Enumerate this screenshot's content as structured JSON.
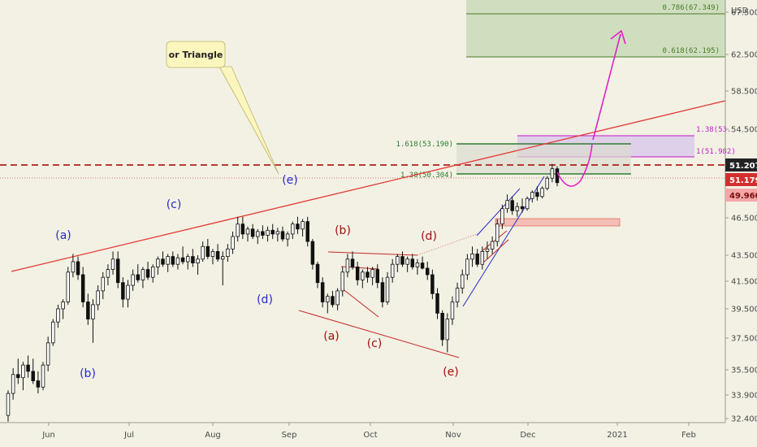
{
  "chart_data": {
    "type": "candlestick",
    "currency_label": "USD",
    "x_ticks": [
      "Jun",
      "Jul",
      "Aug",
      "Sep",
      "Oct",
      "Nov",
      "Dec",
      "2021",
      "Feb"
    ],
    "y_ticks": [
      32.4,
      33.9,
      35.5,
      37.5,
      39.5,
      41.5,
      43.5,
      46.5,
      50.5,
      54.5,
      58.5,
      62.5,
      67.5
    ],
    "price_badges": [
      {
        "value": "51.207",
        "color": "#222222"
      },
      {
        "value": "51.179",
        "color": "#d32f2f"
      },
      {
        "value": "49.960",
        "color": "#f4a6a6"
      }
    ],
    "fib_levels": [
      {
        "label": "0.786(67.349)",
        "price": 67.349,
        "color": "#4a7a2a"
      },
      {
        "label": "0.618(62.195)",
        "price": 62.195,
        "color": "#4a7a2a"
      },
      {
        "label": "1.618(53.190)",
        "price": 53.19,
        "color": "#2e7d32"
      },
      {
        "label": "1.38(50.304)",
        "price": 50.304,
        "color": "#2e7d32"
      },
      {
        "label": "1.38(53.",
        "price": 53.9,
        "color": "#c218c9"
      },
      {
        "label": "1(51.982)",
        "price": 51.982,
        "color": "#c218c9"
      }
    ],
    "callout": "or Triangle",
    "wave_labels": [
      {
        "text": "(a)",
        "color": "#2a2ac8"
      },
      {
        "text": "(b)",
        "color": "#2a2ac8"
      },
      {
        "text": "(c)",
        "color": "#2a2ac8"
      },
      {
        "text": "(d)",
        "color": "#2a2ac8"
      },
      {
        "text": "(e)",
        "color": "#2a2ac8"
      },
      {
        "text": "(b)",
        "color": "#a01010"
      },
      {
        "text": "(d)",
        "color": "#a01010"
      },
      {
        "text": "(a)",
        "color": "#a01010"
      },
      {
        "text": "(c)",
        "color": "#a01010"
      },
      {
        "text": "(e)",
        "color": "#a01010"
      }
    ],
    "candles": [
      {
        "o": 32.6,
        "h": 34.2,
        "l": 32.2,
        "c": 34.0
      },
      {
        "o": 34.0,
        "h": 35.6,
        "l": 33.6,
        "c": 35.2
      },
      {
        "o": 35.2,
        "h": 36.2,
        "l": 34.6,
        "c": 35.0
      },
      {
        "o": 35.0,
        "h": 36.0,
        "l": 34.2,
        "c": 35.8
      },
      {
        "o": 35.8,
        "h": 36.4,
        "l": 35.0,
        "c": 35.4
      },
      {
        "o": 35.4,
        "h": 36.2,
        "l": 34.6,
        "c": 34.8
      },
      {
        "o": 34.8,
        "h": 35.4,
        "l": 34.0,
        "c": 34.4
      },
      {
        "o": 34.4,
        "h": 36.0,
        "l": 34.2,
        "c": 35.8
      },
      {
        "o": 35.8,
        "h": 37.6,
        "l": 35.4,
        "c": 37.2
      },
      {
        "o": 37.2,
        "h": 38.8,
        "l": 37.0,
        "c": 38.6
      },
      {
        "o": 38.6,
        "h": 39.8,
        "l": 38.2,
        "c": 39.5
      },
      {
        "o": 39.5,
        "h": 40.2,
        "l": 38.8,
        "c": 40.0
      },
      {
        "o": 40.0,
        "h": 42.6,
        "l": 39.8,
        "c": 42.2
      },
      {
        "o": 42.2,
        "h": 43.6,
        "l": 41.8,
        "c": 43.0
      },
      {
        "o": 43.0,
        "h": 43.4,
        "l": 41.6,
        "c": 42.0
      },
      {
        "o": 42.0,
        "h": 42.6,
        "l": 39.6,
        "c": 40.0
      },
      {
        "o": 40.0,
        "h": 40.6,
        "l": 38.4,
        "c": 38.8
      },
      {
        "o": 38.8,
        "h": 40.2,
        "l": 37.2,
        "c": 39.8
      },
      {
        "o": 39.8,
        "h": 41.2,
        "l": 39.4,
        "c": 40.8
      },
      {
        "o": 40.8,
        "h": 42.2,
        "l": 40.2,
        "c": 41.8
      },
      {
        "o": 41.8,
        "h": 42.8,
        "l": 41.2,
        "c": 42.4
      },
      {
        "o": 42.4,
        "h": 43.8,
        "l": 42.0,
        "c": 43.2
      },
      {
        "o": 43.2,
        "h": 43.8,
        "l": 41.0,
        "c": 41.4
      },
      {
        "o": 41.4,
        "h": 41.8,
        "l": 39.6,
        "c": 40.2
      },
      {
        "o": 40.2,
        "h": 41.6,
        "l": 39.6,
        "c": 41.2
      },
      {
        "o": 41.2,
        "h": 42.4,
        "l": 40.8,
        "c": 42.0
      },
      {
        "o": 42.0,
        "h": 42.8,
        "l": 41.4,
        "c": 41.6
      },
      {
        "o": 41.6,
        "h": 42.6,
        "l": 41.0,
        "c": 42.4
      },
      {
        "o": 42.4,
        "h": 43.0,
        "l": 41.6,
        "c": 41.8
      },
      {
        "o": 41.8,
        "h": 42.8,
        "l": 41.4,
        "c": 42.6
      },
      {
        "o": 42.6,
        "h": 43.4,
        "l": 42.0,
        "c": 43.2
      },
      {
        "o": 43.2,
        "h": 43.8,
        "l": 42.6,
        "c": 42.8
      },
      {
        "o": 42.8,
        "h": 43.6,
        "l": 42.2,
        "c": 43.4
      },
      {
        "o": 43.4,
        "h": 43.8,
        "l": 42.6,
        "c": 42.8
      },
      {
        "o": 42.8,
        "h": 43.6,
        "l": 42.4,
        "c": 43.3
      },
      {
        "o": 43.3,
        "h": 44.2,
        "l": 42.8,
        "c": 43.0
      },
      {
        "o": 43.0,
        "h": 43.6,
        "l": 42.4,
        "c": 43.4
      },
      {
        "o": 43.4,
        "h": 44.0,
        "l": 42.6,
        "c": 42.9
      },
      {
        "o": 42.9,
        "h": 43.5,
        "l": 42.0,
        "c": 43.2
      },
      {
        "o": 43.2,
        "h": 44.6,
        "l": 43.0,
        "c": 44.2
      },
      {
        "o": 44.2,
        "h": 44.8,
        "l": 43.2,
        "c": 43.4
      },
      {
        "o": 43.4,
        "h": 44.0,
        "l": 42.8,
        "c": 43.8
      },
      {
        "o": 43.8,
        "h": 44.4,
        "l": 43.0,
        "c": 43.2
      },
      {
        "o": 43.2,
        "h": 43.8,
        "l": 41.2,
        "c": 43.4
      },
      {
        "o": 43.4,
        "h": 44.4,
        "l": 43.0,
        "c": 44.0
      },
      {
        "o": 44.0,
        "h": 45.4,
        "l": 43.6,
        "c": 45.0
      },
      {
        "o": 45.0,
        "h": 46.6,
        "l": 44.6,
        "c": 46.0
      },
      {
        "o": 46.0,
        "h": 46.6,
        "l": 44.8,
        "c": 45.2
      },
      {
        "o": 45.2,
        "h": 45.8,
        "l": 44.6,
        "c": 45.6
      },
      {
        "o": 45.6,
        "h": 46.0,
        "l": 44.8,
        "c": 45.0
      },
      {
        "o": 45.0,
        "h": 45.6,
        "l": 44.4,
        "c": 45.4
      },
      {
        "o": 45.4,
        "h": 45.9,
        "l": 44.8,
        "c": 45.1
      },
      {
        "o": 45.1,
        "h": 45.8,
        "l": 44.6,
        "c": 45.5
      },
      {
        "o": 45.5,
        "h": 46.0,
        "l": 44.8,
        "c": 45.2
      },
      {
        "o": 45.2,
        "h": 45.7,
        "l": 44.6,
        "c": 45.4
      },
      {
        "o": 45.4,
        "h": 45.8,
        "l": 44.6,
        "c": 44.8
      },
      {
        "o": 44.8,
        "h": 45.4,
        "l": 44.2,
        "c": 45.2
      },
      {
        "o": 45.2,
        "h": 46.2,
        "l": 44.8,
        "c": 46.0
      },
      {
        "o": 46.0,
        "h": 46.6,
        "l": 45.2,
        "c": 45.6
      },
      {
        "o": 45.6,
        "h": 46.4,
        "l": 45.0,
        "c": 46.2
      },
      {
        "o": 46.2,
        "h": 46.6,
        "l": 44.2,
        "c": 44.6
      },
      {
        "o": 44.6,
        "h": 44.8,
        "l": 42.4,
        "c": 42.8
      },
      {
        "o": 42.8,
        "h": 43.0,
        "l": 41.0,
        "c": 41.4
      },
      {
        "o": 41.4,
        "h": 41.8,
        "l": 39.6,
        "c": 40.0
      },
      {
        "o": 40.0,
        "h": 40.6,
        "l": 39.2,
        "c": 40.4
      },
      {
        "o": 40.4,
        "h": 40.8,
        "l": 39.6,
        "c": 39.8
      },
      {
        "o": 39.8,
        "h": 41.0,
        "l": 39.4,
        "c": 40.8
      },
      {
        "o": 40.8,
        "h": 42.6,
        "l": 40.4,
        "c": 42.2
      },
      {
        "o": 42.2,
        "h": 43.6,
        "l": 41.8,
        "c": 43.2
      },
      {
        "o": 43.2,
        "h": 43.8,
        "l": 42.4,
        "c": 42.6
      },
      {
        "o": 42.6,
        "h": 43.0,
        "l": 41.2,
        "c": 41.6
      },
      {
        "o": 41.6,
        "h": 42.4,
        "l": 41.0,
        "c": 42.2
      },
      {
        "o": 42.2,
        "h": 42.6,
        "l": 41.4,
        "c": 41.8
      },
      {
        "o": 41.8,
        "h": 42.6,
        "l": 41.2,
        "c": 42.4
      },
      {
        "o": 42.4,
        "h": 42.8,
        "l": 41.0,
        "c": 41.4
      },
      {
        "o": 41.4,
        "h": 41.8,
        "l": 39.6,
        "c": 40.0
      },
      {
        "o": 40.0,
        "h": 42.2,
        "l": 39.8,
        "c": 41.8
      },
      {
        "o": 41.8,
        "h": 43.2,
        "l": 41.4,
        "c": 42.8
      },
      {
        "o": 42.8,
        "h": 43.6,
        "l": 42.2,
        "c": 43.4
      },
      {
        "o": 43.4,
        "h": 43.8,
        "l": 42.6,
        "c": 42.8
      },
      {
        "o": 42.8,
        "h": 43.4,
        "l": 42.2,
        "c": 43.2
      },
      {
        "o": 43.2,
        "h": 43.6,
        "l": 42.4,
        "c": 42.6
      },
      {
        "o": 42.6,
        "h": 43.2,
        "l": 42.0,
        "c": 42.9
      },
      {
        "o": 42.9,
        "h": 43.4,
        "l": 42.4,
        "c": 42.5
      },
      {
        "o": 42.5,
        "h": 43.0,
        "l": 41.6,
        "c": 42.0
      },
      {
        "o": 42.0,
        "h": 42.4,
        "l": 40.2,
        "c": 40.6
      },
      {
        "o": 40.6,
        "h": 41.0,
        "l": 38.8,
        "c": 39.2
      },
      {
        "o": 39.2,
        "h": 39.4,
        "l": 37.0,
        "c": 37.4
      },
      {
        "o": 37.4,
        "h": 39.2,
        "l": 36.6,
        "c": 38.8
      },
      {
        "o": 38.8,
        "h": 40.4,
        "l": 38.4,
        "c": 40.0
      },
      {
        "o": 40.0,
        "h": 41.4,
        "l": 39.6,
        "c": 41.0
      },
      {
        "o": 41.0,
        "h": 42.4,
        "l": 40.6,
        "c": 42.0
      },
      {
        "o": 42.0,
        "h": 43.6,
        "l": 41.6,
        "c": 43.2
      },
      {
        "o": 43.2,
        "h": 44.2,
        "l": 42.6,
        "c": 43.6
      },
      {
        "o": 43.6,
        "h": 44.0,
        "l": 42.6,
        "c": 42.8
      },
      {
        "o": 42.8,
        "h": 44.2,
        "l": 42.4,
        "c": 43.8
      },
      {
        "o": 43.8,
        "h": 44.6,
        "l": 43.2,
        "c": 44.0
      },
      {
        "o": 44.0,
        "h": 45.0,
        "l": 43.6,
        "c": 44.6
      },
      {
        "o": 44.6,
        "h": 46.4,
        "l": 44.2,
        "c": 46.0
      },
      {
        "o": 46.0,
        "h": 47.8,
        "l": 45.6,
        "c": 47.4
      },
      {
        "o": 47.4,
        "h": 48.8,
        "l": 47.0,
        "c": 48.2
      },
      {
        "o": 48.2,
        "h": 48.6,
        "l": 46.8,
        "c": 47.2
      },
      {
        "o": 47.2,
        "h": 48.0,
        "l": 46.6,
        "c": 47.6
      },
      {
        "o": 47.6,
        "h": 48.4,
        "l": 47.0,
        "c": 47.4
      },
      {
        "o": 47.4,
        "h": 48.6,
        "l": 47.2,
        "c": 48.4
      },
      {
        "o": 48.4,
        "h": 49.2,
        "l": 48.0,
        "c": 49.0
      },
      {
        "o": 49.0,
        "h": 49.6,
        "l": 48.2,
        "c": 48.6
      },
      {
        "o": 48.6,
        "h": 49.6,
        "l": 48.4,
        "c": 49.4
      },
      {
        "o": 49.4,
        "h": 50.6,
        "l": 49.2,
        "c": 50.4
      },
      {
        "o": 50.4,
        "h": 51.6,
        "l": 50.0,
        "c": 51.2
      },
      {
        "o": 51.2,
        "h": 51.4,
        "l": 49.6,
        "c": 49.96
      }
    ]
  }
}
